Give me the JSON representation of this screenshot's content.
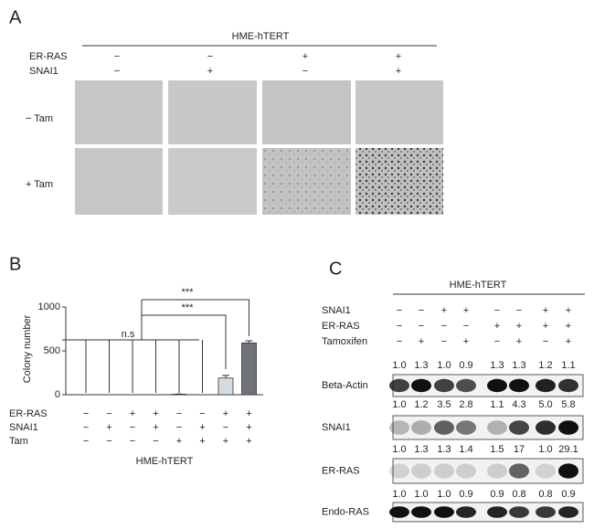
{
  "panel_a": {
    "label": "A",
    "header": "HME-hTERT",
    "rows": [
      {
        "label": "ER-RAS",
        "signs": [
          "−",
          "−",
          "+",
          "+"
        ]
      },
      {
        "label": "SNAI1",
        "signs": [
          "−",
          "+",
          "−",
          "+"
        ]
      }
    ],
    "image_rows": [
      "− Tam",
      "+ Tam"
    ]
  },
  "chart_data": {
    "type": "bar",
    "label": "B",
    "ylabel": "Colony number",
    "values": [
      0,
      0,
      0,
      0,
      5,
      0,
      190,
      590
    ],
    "errors": [
      0,
      0,
      0,
      0,
      3,
      0,
      30,
      25
    ],
    "colors": [
      "#e8e8e8",
      "#e8e8e8",
      "#e8e8e8",
      "#e8e8e8",
      "#e8e8e8",
      "#e8e8e8",
      "#d3dbe3",
      "#707478"
    ],
    "ylim": [
      0,
      1000
    ],
    "yticks": [
      0,
      500,
      1000
    ],
    "conditions": [
      {
        "name": "ER-RAS",
        "signs": [
          "−",
          "−",
          "+",
          "+",
          "−",
          "−",
          "+",
          "+"
        ]
      },
      {
        "name": "SNAI1",
        "signs": [
          "−",
          "+",
          "−",
          "+",
          "−",
          "+",
          "−",
          "+"
        ]
      },
      {
        "name": "Tam",
        "signs": [
          "−",
          "−",
          "−",
          "−",
          "+",
          "+",
          "+",
          "+"
        ]
      }
    ],
    "xlabel": "HME-hTERT",
    "annotations": [
      "n.s",
      "***",
      "***"
    ]
  },
  "panel_c": {
    "label": "C",
    "header": "HME-hTERT",
    "rows": [
      {
        "label": "SNAI1",
        "signs": [
          "−",
          "−",
          "+",
          "+",
          "−",
          "−",
          "+",
          "+"
        ]
      },
      {
        "label": "ER-RAS",
        "signs": [
          "−",
          "−",
          "−",
          "−",
          "+",
          "+",
          "+",
          "+"
        ]
      },
      {
        "label": "Tamoxifen",
        "signs": [
          "−",
          "+",
          "−",
          "+",
          "−",
          "+",
          "−",
          "+"
        ]
      }
    ],
    "blots": [
      {
        "label": "Beta-Actin",
        "quant": [
          "1.0",
          "1.3",
          "1.0",
          "0.9",
          "1.3",
          "1.3",
          "1.2",
          "1.1"
        ]
      },
      {
        "label": "SNAI1",
        "quant": [
          "1.0",
          "1.2",
          "3.5",
          "2.8",
          "1.1",
          "4.3",
          "5.0",
          "5.8"
        ]
      },
      {
        "label": "ER-RAS",
        "quant": [
          "1.0",
          "1.3",
          "1.3",
          "1.4",
          "1.5",
          "17",
          "1.0",
          "29.1"
        ]
      },
      {
        "label": "Endo-RAS",
        "quant": [
          "1.0",
          "1.0",
          "1.0",
          "0.9",
          "0.9",
          "0.8",
          "0.8",
          "0.9"
        ]
      }
    ]
  }
}
